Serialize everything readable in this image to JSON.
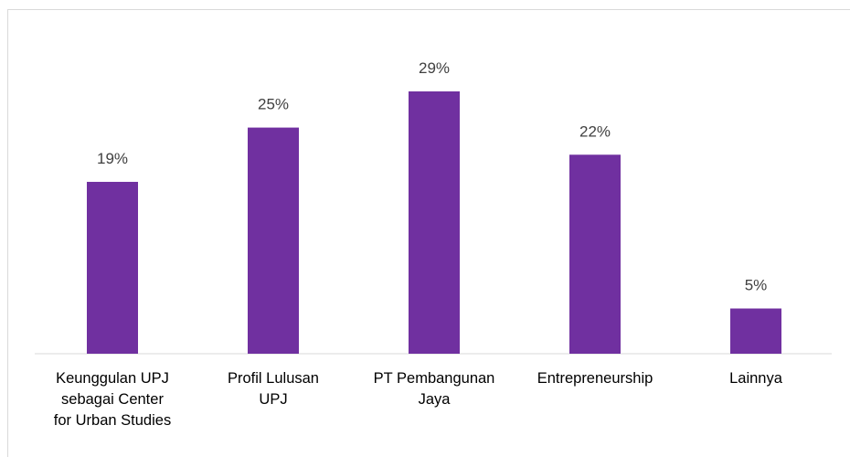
{
  "chart_data": {
    "type": "bar",
    "categories": [
      "Keunggulan UPJ\nsebagai Center\nfor Urban Studies",
      "Profil Lulusan\nUPJ",
      "PT Pembangunan\nJaya",
      "Entrepreneurship",
      "Lainnya"
    ],
    "values": [
      19,
      25,
      29,
      22,
      5
    ],
    "value_labels": [
      "19%",
      "25%",
      "29%",
      "22%",
      "5%"
    ],
    "color": "#7030a0"
  }
}
